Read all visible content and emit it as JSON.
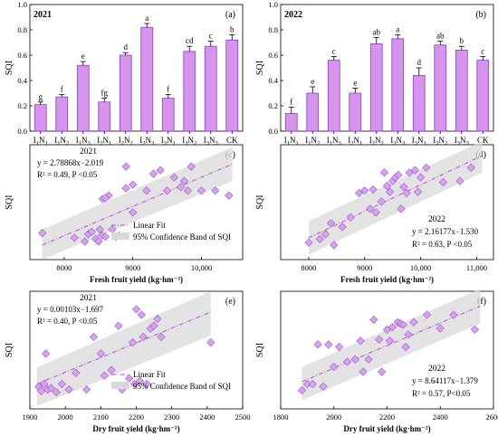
{
  "chart_data": [
    {
      "panel": "(a)",
      "type": "bar",
      "year": "2021",
      "categories": [
        "I1N1",
        "I1N2",
        "I1N3",
        "I2N1",
        "I2N2",
        "I2N3",
        "I3N1",
        "I3N2",
        "I3N3",
        "CK"
      ],
      "values": [
        0.21,
        0.27,
        0.52,
        0.23,
        0.6,
        0.82,
        0.26,
        0.63,
        0.67,
        0.72
      ],
      "errors": [
        0.02,
        0.02,
        0.03,
        0.03,
        0.02,
        0.03,
        0.03,
        0.04,
        0.04,
        0.04
      ],
      "letters": [
        "g",
        "f",
        "e",
        "fg",
        "d",
        "a",
        "f",
        "cd",
        "c",
        "b"
      ],
      "ylabel": "SQI",
      "ylim": [
        0,
        1.0
      ],
      "yticks": [
        0.0,
        0.2,
        0.4,
        0.6,
        0.8,
        1.0
      ],
      "bar_color": "#d694ec",
      "bar_edge": "#8a3fc0"
    },
    {
      "panel": "(b)",
      "type": "bar",
      "year": "2022",
      "categories": [
        "I1N1",
        "I1N2",
        "I1N3",
        "I2N1",
        "I2N2",
        "I2N3",
        "I3N1",
        "I3N2",
        "I3N3",
        "CK"
      ],
      "values": [
        0.14,
        0.3,
        0.56,
        0.3,
        0.69,
        0.73,
        0.44,
        0.68,
        0.64,
        0.56
      ],
      "errors": [
        0.05,
        0.05,
        0.03,
        0.04,
        0.05,
        0.03,
        0.06,
        0.03,
        0.03,
        0.03
      ],
      "letters": [
        "f",
        "e",
        "c",
        "e",
        "ab",
        "a",
        "d",
        "ab",
        "b",
        "c"
      ],
      "ylabel": "SQI",
      "ylim": [
        0,
        1.0
      ],
      "yticks": [
        0.0,
        0.2,
        0.4,
        0.6,
        0.8,
        1.0
      ],
      "bar_color": "#d694ec",
      "bar_edge": "#8a3fc0"
    },
    {
      "panel": "(c)",
      "type": "scatter",
      "year": "2021",
      "xlabel": "Fresh fruit yield (kg·hm⁻²)",
      "ylabel": "SQI",
      "xlim": [
        7500,
        10600
      ],
      "xticks": [
        8000,
        9000,
        10000
      ],
      "xticklabels": [
        "8000",
        "9000",
        "10,000"
      ],
      "ylim": [
        0.05,
        1.0
      ],
      "equation": "y = 2.78868x−2.019",
      "r2": "R² = 0.49, P <0.05",
      "fit": {
        "x0": 7680,
        "y0": 0.17,
        "x1": 10450,
        "y1": 0.84
      },
      "band": {
        "upper_start": 0.3,
        "upper_end": 0.98,
        "lower_start": 0.05,
        "lower_end": 0.7
      },
      "legend": [
        "Linear Fit",
        "95% Confidence Band of SQI"
      ],
      "x": [
        7680,
        8150,
        8300,
        8350,
        8400,
        8460,
        8500,
        8520,
        8550,
        8560,
        8600,
        8650,
        8700,
        8750,
        8800,
        8900,
        9000,
        8600,
        8900,
        9000,
        9200,
        9300,
        9400,
        9500,
        9600,
        9700,
        9750,
        9800,
        9850,
        10000,
        10200,
        10400
      ],
      "y": [
        0.27,
        0.23,
        0.2,
        0.26,
        0.28,
        0.22,
        0.2,
        0.3,
        0.25,
        0.55,
        0.24,
        0.58,
        0.3,
        0.24,
        0.25,
        0.64,
        0.67,
        0.56,
        0.82,
        0.44,
        0.62,
        0.76,
        0.79,
        0.62,
        0.73,
        0.65,
        0.7,
        0.62,
        0.82,
        0.62,
        0.62,
        0.58
      ]
    },
    {
      "panel": "(d)",
      "type": "scatter",
      "year": "2022",
      "xlabel": "Fresh fruit yield (kg·hm⁻²)",
      "ylabel": "SQI",
      "xlim": [
        7500,
        11300
      ],
      "xticks": [
        8000,
        9000,
        10000,
        11000
      ],
      "xticklabels": [
        "8000",
        "9000",
        "10,000",
        "11,000"
      ],
      "ylim": [
        0.0,
        0.95
      ],
      "equation": "y = 2.16177x−1.530",
      "r2": "R² = 0.63, P <0.05",
      "fit": {
        "x0": 8000,
        "y0": 0.18,
        "x1": 11100,
        "y1": 0.86
      },
      "band": {
        "upper_start": 0.32,
        "upper_end": 0.98,
        "lower_start": 0.04,
        "lower_end": 0.72
      },
      "x": [
        8000,
        8200,
        8300,
        8400,
        8450,
        8600,
        8750,
        8900,
        9000,
        9100,
        9150,
        9200,
        9300,
        9350,
        9400,
        9450,
        9500,
        9550,
        9600,
        9650,
        9700,
        9750,
        9800,
        9900,
        9950,
        10000,
        10100,
        10400,
        10700,
        10900
      ],
      "y": [
        0.14,
        0.17,
        0.21,
        0.3,
        0.12,
        0.27,
        0.35,
        0.55,
        0.57,
        0.42,
        0.58,
        0.39,
        0.48,
        0.72,
        0.61,
        0.56,
        0.65,
        0.68,
        0.7,
        0.42,
        0.6,
        0.55,
        0.72,
        0.74,
        0.56,
        0.68,
        0.76,
        0.64,
        0.65,
        0.76
      ]
    },
    {
      "panel": "(e)",
      "type": "scatter",
      "year": "2021",
      "xlabel": "Dry fruit yield (kg·hm⁻²)",
      "ylabel": "SQI",
      "xlim": [
        1900,
        2500
      ],
      "xticks": [
        1900,
        2000,
        2100,
        2200,
        2300,
        2400,
        2500
      ],
      "ylim": [
        0.1,
        0.95
      ],
      "equation": "y = 0.00103x−1.697",
      "r2": "R² = 0.40, P <0.05",
      "fit": {
        "x0": 1920,
        "y0": 0.28,
        "x1": 2410,
        "y1": 0.8
      },
      "band": {
        "upper_start": 0.4,
        "upper_end": 0.95,
        "lower_start": 0.12,
        "lower_end": 0.63
      },
      "legend": [
        "Linear Fit",
        "95% Confidence Band of SQI"
      ],
      "x": [
        1925,
        1932,
        1940,
        1945,
        1950,
        1960,
        1975,
        1990,
        2010,
        2030,
        2060,
        2080,
        2100,
        2110,
        2130,
        2150,
        2160,
        2180,
        2190,
        2195,
        2200,
        2210,
        2215,
        2220,
        2230,
        2240,
        2250,
        2260,
        2270,
        2410
      ],
      "y": [
        0.26,
        0.23,
        0.28,
        0.5,
        0.24,
        0.25,
        0.22,
        0.28,
        0.24,
        0.36,
        0.24,
        0.62,
        0.5,
        0.34,
        0.38,
        0.7,
        0.24,
        0.32,
        0.58,
        0.28,
        0.82,
        0.3,
        0.78,
        0.62,
        0.28,
        0.68,
        0.7,
        0.75,
        0.62,
        0.58
      ]
    },
    {
      "panel": "(f)",
      "type": "scatter",
      "year": "2022",
      "xlabel": "Dry fruit yield (kg·hm⁻²)",
      "ylabel": "SQI",
      "xlim": [
        1800,
        2600
      ],
      "xticks": [
        1800,
        2000,
        2200,
        2400,
        2600
      ],
      "ylim": [
        0.0,
        0.95
      ],
      "equation": "y = 8.64117x−1.379",
      "r2": "R² = 0.57, P<0.05",
      "fit": {
        "x0": 1880,
        "y0": 0.22,
        "x1": 2550,
        "y1": 0.83
      },
      "band": {
        "upper_start": 0.34,
        "upper_end": 0.97,
        "lower_start": 0.07,
        "lower_end": 0.69
      },
      "x": [
        1880,
        1900,
        1920,
        1940,
        1960,
        1980,
        2000,
        2020,
        2050,
        2080,
        2100,
        2110,
        2130,
        2150,
        2170,
        2180,
        2200,
        2210,
        2220,
        2240,
        2250,
        2260,
        2270,
        2280,
        2300,
        2350,
        2400,
        2450,
        2530
      ],
      "y": [
        0.15,
        0.2,
        0.2,
        0.52,
        0.18,
        0.52,
        0.34,
        0.5,
        0.38,
        0.4,
        0.55,
        0.3,
        0.4,
        0.72,
        0.56,
        0.3,
        0.64,
        0.55,
        0.66,
        0.7,
        0.69,
        0.68,
        0.5,
        0.6,
        0.7,
        0.76,
        0.65,
        0.76,
        0.64
      ]
    }
  ]
}
